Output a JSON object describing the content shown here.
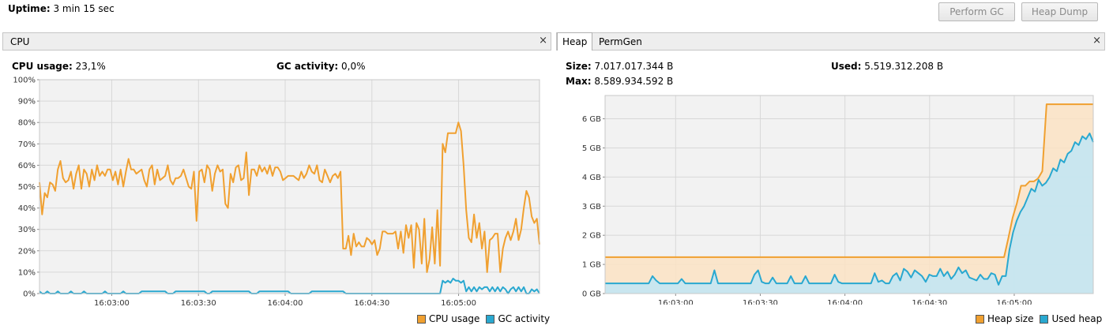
{
  "uptime": {
    "label": "Uptime:",
    "value": "3 min 15 sec"
  },
  "buttons": {
    "perform_gc": "Perform GC",
    "heap_dump": "Heap Dump"
  },
  "cpu_panel": {
    "tab": "CPU",
    "close_glyph": "×",
    "cpu_usage_label": "CPU usage:",
    "cpu_usage_value": "23,1%",
    "gc_activity_label": "GC activity:",
    "gc_activity_value": "0,0%",
    "legend": [
      "CPU usage",
      "GC activity"
    ]
  },
  "memory_panel": {
    "tabs": [
      "Heap",
      "PermGen"
    ],
    "active_tab": "Heap",
    "close_glyph": "×",
    "size_label": "Size:",
    "size_value": "7.017.017.344 B",
    "used_label": "Used:",
    "used_value": "5.519.312.208 B",
    "max_label": "Max:",
    "max_value": "8.589.934.592 B",
    "legend": [
      "Heap size",
      "Used heap"
    ]
  },
  "colors": {
    "orange": "#f0a030",
    "blue": "#29a8d0",
    "plot_bg": "#f2f2f2",
    "grid": "#d8d8d8"
  },
  "chart_data": [
    {
      "type": "line",
      "name": "cpu",
      "x_ticks": [
        "16:03:00",
        "16:03:30",
        "16:04:00",
        "16:04:30",
        "16:05:00"
      ],
      "x_range": [
        "16:02:35",
        "16:05:28"
      ],
      "y_ticks": [
        "0%",
        "10%",
        "20%",
        "30%",
        "40%",
        "50%",
        "60%",
        "70%",
        "80%",
        "90%",
        "100%"
      ],
      "ylim": [
        0,
        100
      ],
      "grid": true,
      "legend_position": "bottom-right",
      "series": [
        {
          "name": "CPU usage",
          "color": "#f0a030",
          "values": [
            52,
            37,
            47,
            45,
            52,
            51,
            48,
            58,
            62,
            54,
            52,
            53,
            57,
            49,
            56,
            60,
            49,
            58,
            56,
            50,
            58,
            53,
            60,
            55,
            57,
            55,
            58,
            58,
            53,
            57,
            51,
            58,
            50,
            57,
            63,
            58,
            58,
            56,
            57,
            58,
            53,
            50,
            58,
            60,
            51,
            58,
            53,
            54,
            55,
            60,
            53,
            51,
            54,
            54,
            55,
            58,
            54,
            50,
            49,
            57,
            34,
            57,
            58,
            52,
            60,
            58,
            48,
            56,
            60,
            57,
            58,
            42,
            40,
            56,
            52,
            59,
            60,
            53,
            54,
            66,
            46,
            58,
            58,
            55,
            60,
            57,
            59,
            56,
            60,
            55,
            59,
            59,
            57,
            53,
            54,
            55,
            55,
            55,
            54,
            53,
            57,
            54,
            56,
            60,
            57,
            56,
            60,
            53,
            52,
            58,
            55,
            52,
            55,
            56,
            54,
            57,
            21,
            21,
            27,
            18,
            28,
            22,
            24,
            22,
            22,
            26,
            25,
            23,
            25,
            18,
            21,
            29,
            29,
            28,
            28,
            28,
            29,
            21,
            29,
            19,
            32,
            26,
            32,
            12,
            33,
            30,
            14,
            35,
            10,
            16,
            31,
            14,
            39,
            13,
            70,
            66,
            75,
            75,
            75,
            75,
            80,
            76,
            60,
            39,
            26,
            24,
            37,
            26,
            33,
            21,
            29,
            10,
            25,
            26,
            28,
            28,
            10,
            21,
            26,
            29,
            25,
            29,
            35,
            25,
            30,
            40,
            48,
            45,
            36,
            33,
            35,
            23
          ]
        },
        {
          "name": "GC activity",
          "color": "#29a8d0",
          "values": [
            1,
            0,
            0,
            1,
            0,
            0,
            0,
            1,
            0,
            0,
            0,
            0,
            1,
            0,
            0,
            0,
            0,
            1,
            0,
            0,
            0,
            0,
            0,
            0,
            0,
            1,
            0,
            0,
            0,
            0,
            0,
            0,
            1,
            0,
            0,
            0,
            0,
            0,
            0,
            1,
            1,
            1,
            1,
            1,
            1,
            1,
            1,
            1,
            1,
            0,
            0,
            0,
            1,
            1,
            1,
            1,
            1,
            1,
            1,
            1,
            1,
            1,
            1,
            1,
            0,
            0,
            1,
            1,
            1,
            1,
            1,
            1,
            1,
            1,
            1,
            1,
            1,
            1,
            1,
            1,
            1,
            0,
            0,
            0,
            1,
            1,
            1,
            1,
            1,
            1,
            1,
            1,
            1,
            1,
            1,
            1,
            0,
            0,
            0,
            0,
            0,
            0,
            0,
            0,
            1,
            1,
            1,
            1,
            1,
            1,
            1,
            1,
            1,
            1,
            1,
            1,
            1,
            0,
            0,
            0,
            0,
            0,
            0,
            0,
            0,
            0,
            0,
            0,
            0,
            0,
            0,
            0,
            0,
            0,
            0,
            0,
            0,
            0,
            0,
            0,
            0,
            0,
            0,
            0,
            0,
            0,
            0,
            0,
            0,
            0,
            0,
            0,
            0,
            0,
            6,
            5,
            6,
            5,
            7,
            6,
            6,
            5,
            6,
            1,
            3,
            1,
            3,
            1,
            3,
            2,
            3,
            3,
            1,
            3,
            1,
            3,
            1,
            3,
            2,
            0,
            2,
            3,
            1,
            3,
            1,
            3,
            0,
            0,
            2,
            1,
            2,
            0
          ]
        }
      ]
    },
    {
      "type": "area",
      "name": "heap",
      "x_ticks": [
        "16:03:00",
        "16:03:30",
        "16:04:00",
        "16:04:30",
        "16:05:00"
      ],
      "x_range": [
        "16:02:35",
        "16:05:28"
      ],
      "y_ticks": [
        "0 GB",
        "1 GB",
        "2 GB",
        "3 GB",
        "4 GB",
        "5 GB",
        "6 GB"
      ],
      "ylim": [
        0,
        6.8
      ],
      "grid": true,
      "legend_position": "bottom-right",
      "series": [
        {
          "name": "Heap size",
          "color": "#f0a030",
          "values": [
            1.25,
            1.25,
            1.25,
            1.25,
            1.25,
            1.25,
            1.25,
            1.25,
            1.25,
            1.25,
            1.25,
            1.25,
            1.25,
            1.25,
            1.25,
            1.25,
            1.25,
            1.25,
            1.25,
            1.25,
            1.25,
            1.25,
            1.25,
            1.25,
            1.25,
            1.25,
            1.25,
            1.25,
            1.25,
            1.25,
            1.25,
            1.25,
            1.25,
            1.25,
            1.25,
            1.25,
            1.25,
            1.25,
            1.25,
            1.25,
            1.25,
            1.25,
            1.25,
            1.25,
            1.25,
            1.25,
            1.25,
            1.25,
            1.25,
            1.25,
            1.25,
            1.25,
            1.25,
            1.25,
            1.25,
            1.25,
            1.25,
            1.25,
            1.25,
            1.25,
            1.25,
            1.25,
            1.25,
            1.25,
            1.25,
            1.25,
            1.25,
            1.25,
            1.25,
            1.25,
            1.25,
            1.25,
            1.25,
            1.25,
            1.25,
            1.25,
            1.25,
            1.25,
            1.25,
            1.25,
            1.25,
            1.25,
            1.25,
            1.25,
            1.25,
            1.25,
            1.25,
            1.25,
            1.25,
            1.25,
            1.25,
            1.25,
            1.25,
            1.25,
            1.25,
            1.9,
            2.6,
            3.1,
            3.7,
            3.7,
            3.85,
            3.85,
            3.95,
            4.2,
            6.5,
            6.5,
            6.5,
            6.5,
            6.5,
            6.5,
            6.5,
            6.5,
            6.5,
            6.5,
            6.5,
            6.5
          ]
        },
        {
          "name": "Used heap",
          "color": "#29a8d0",
          "values": [
            0.35,
            0.35,
            0.35,
            0.35,
            0.35,
            0.35,
            0.35,
            0.35,
            0.35,
            0.35,
            0.35,
            0.35,
            0.35,
            0.6,
            0.45,
            0.35,
            0.35,
            0.35,
            0.35,
            0.35,
            0.35,
            0.5,
            0.35,
            0.35,
            0.35,
            0.35,
            0.35,
            0.35,
            0.35,
            0.35,
            0.8,
            0.35,
            0.35,
            0.35,
            0.35,
            0.35,
            0.35,
            0.35,
            0.35,
            0.35,
            0.35,
            0.65,
            0.8,
            0.4,
            0.35,
            0.35,
            0.55,
            0.35,
            0.35,
            0.35,
            0.35,
            0.6,
            0.35,
            0.35,
            0.35,
            0.6,
            0.35,
            0.35,
            0.35,
            0.35,
            0.35,
            0.35,
            0.35,
            0.65,
            0.4,
            0.35,
            0.35,
            0.35,
            0.35,
            0.35,
            0.35,
            0.35,
            0.35,
            0.35,
            0.7,
            0.4,
            0.45,
            0.35,
            0.35,
            0.6,
            0.7,
            0.45,
            0.85,
            0.75,
            0.55,
            0.8,
            0.7,
            0.6,
            0.4,
            0.65,
            0.6,
            0.6,
            0.85,
            0.6,
            0.75,
            0.5,
            0.65,
            0.9,
            0.7,
            0.8,
            0.55,
            0.5,
            0.45,
            0.65,
            0.5,
            0.5,
            0.7,
            0.65,
            0.3,
            0.6,
            0.6,
            1.5,
            2.1,
            2.5,
            2.8,
            3.0,
            3.3,
            3.6,
            3.5,
            3.9,
            3.7,
            3.8,
            4.0,
            4.3,
            4.2,
            4.6,
            4.5,
            4.8,
            4.9,
            5.2,
            5.1,
            5.4,
            5.3,
            5.5,
            5.2
          ]
        }
      ]
    }
  ]
}
